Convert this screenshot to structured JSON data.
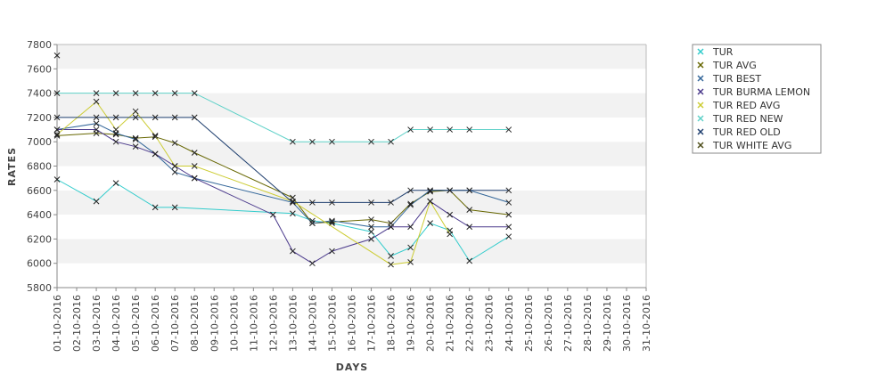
{
  "chart_data": {
    "type": "line",
    "title": "",
    "xlabel": "DAYS",
    "ylabel": "RATES",
    "ylim": [
      5800,
      7800
    ],
    "yticks": [
      5800,
      6000,
      6200,
      6400,
      6600,
      6800,
      7000,
      7200,
      7400,
      7600,
      7800
    ],
    "grid": true,
    "legend_position": "right",
    "categories": [
      "01-10-2016",
      "02-10-2016",
      "03-10-2016",
      "04-10-2016",
      "05-10-2016",
      "06-10-2016",
      "07-10-2016",
      "08-10-2016",
      "09-10-2016",
      "10-10-2016",
      "11-10-2016",
      "12-10-2016",
      "13-10-2016",
      "14-10-2016",
      "15-10-2016",
      "16-10-2016",
      "17-10-2016",
      "18-10-2016",
      "19-10-2016",
      "20-10-2016",
      "21-10-2016",
      "22-10-2016",
      "23-10-2016",
      "24-10-2016",
      "25-10-2016",
      "26-10-2016",
      "27-10-2016",
      "28-10-2016",
      "29-10-2016",
      "30-10-2016",
      "31-10-2016"
    ],
    "series": [
      {
        "name": "TUR",
        "color": "#33cccc",
        "values": [
          6690,
          null,
          6510,
          6660,
          null,
          6460,
          6460,
          null,
          null,
          null,
          null,
          null,
          6410,
          6350,
          6330,
          null,
          6260,
          6060,
          6130,
          6330,
          6270,
          6020,
          null,
          6220,
          null,
          null,
          null,
          null,
          null,
          null,
          null
        ]
      },
      {
        "name": "TUR AVG",
        "color": "#666600",
        "values": [
          7050,
          null,
          7070,
          7060,
          7030,
          7040,
          6990,
          6910,
          null,
          null,
          null,
          null,
          6540,
          6330,
          6340,
          null,
          6360,
          6330,
          6490,
          6590,
          6600,
          6440,
          null,
          6400,
          null,
          null,
          null,
          null,
          null,
          null,
          null
        ]
      },
      {
        "name": "TUR BEST",
        "color": "#336699",
        "values": [
          7100,
          null,
          7150,
          7070,
          7020,
          6900,
          6750,
          6700,
          null,
          null,
          null,
          null,
          6500,
          6330,
          6350,
          null,
          6300,
          6300,
          6480,
          6600,
          6600,
          6600,
          null,
          6500,
          null,
          null,
          null,
          null,
          null,
          null,
          null
        ]
      },
      {
        "name": "TUR BURMA LEMON",
        "color": "#4b3a8c",
        "values": [
          7100,
          null,
          7100,
          7000,
          6960,
          6900,
          6800,
          6700,
          null,
          null,
          null,
          6400,
          6100,
          6000,
          6100,
          null,
          6200,
          6300,
          6300,
          6510,
          6400,
          6300,
          null,
          6300,
          null,
          null,
          null,
          null,
          null,
          null,
          null
        ]
      },
      {
        "name": "TUR RED AVG",
        "color": "#cccc33",
        "values": [
          7060,
          null,
          7330,
          7100,
          7250,
          7050,
          6800,
          6800,
          null,
          null,
          null,
          null,
          6510,
          null,
          null,
          null,
          null,
          5990,
          6010,
          6510,
          6240,
          null,
          null,
          null,
          null,
          null,
          null,
          null,
          null,
          null,
          null
        ]
      },
      {
        "name": "TUR RED NEW",
        "color": "#5fd1c8",
        "values": [
          7400,
          null,
          7400,
          7400,
          7400,
          7400,
          7400,
          7400,
          null,
          null,
          null,
          null,
          7000,
          7000,
          7000,
          null,
          7000,
          7000,
          7100,
          7100,
          7100,
          7100,
          null,
          7100,
          null,
          null,
          null,
          null,
          null,
          null,
          null
        ]
      },
      {
        "name": "TUR RED OLD",
        "color": "#1f3f6f",
        "values": [
          7200,
          null,
          7200,
          7200,
          7200,
          7200,
          7200,
          7200,
          null,
          null,
          null,
          null,
          6500,
          6500,
          6500,
          null,
          6500,
          6500,
          6600,
          6600,
          6600,
          6600,
          null,
          6600,
          null,
          null,
          null,
          null,
          null,
          null,
          null
        ]
      },
      {
        "name": "TUR WHITE AVG",
        "color": "#4d4d1a",
        "values": [
          7710,
          null,
          null,
          null,
          null,
          null,
          null,
          null,
          null,
          null,
          null,
          null,
          null,
          null,
          null,
          null,
          null,
          null,
          null,
          null,
          null,
          null,
          null,
          null,
          null,
          null,
          null,
          null,
          null,
          null,
          null
        ]
      }
    ]
  }
}
